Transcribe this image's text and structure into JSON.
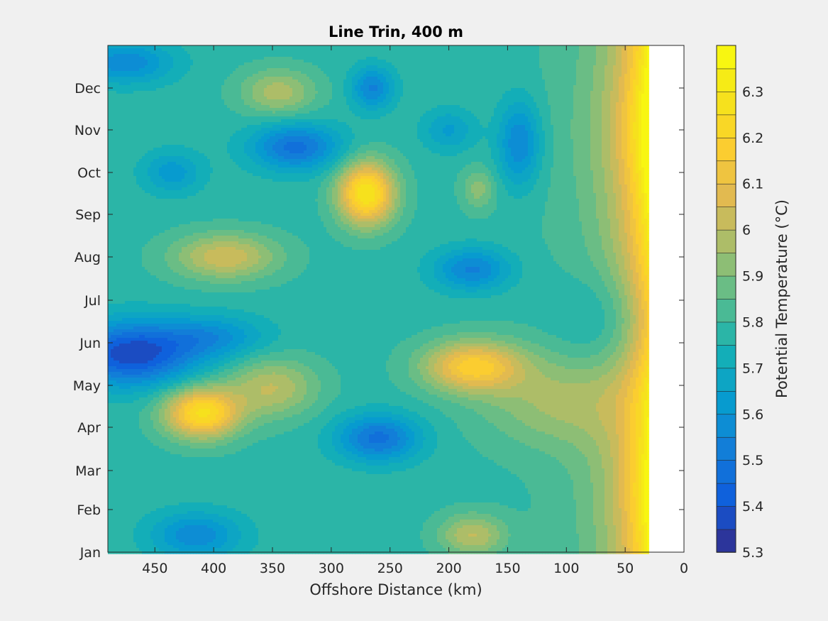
{
  "chart_data": {
    "type": "heatmap",
    "subtype": "filled-contour",
    "title": "Line Trin, 400 m",
    "xlabel": "Offshore Distance (km)",
    "ylabel": "",
    "x_reversed": true,
    "xlim": [
      490,
      0
    ],
    "x_ticks": [
      450,
      400,
      350,
      300,
      250,
      200,
      150,
      100,
      50,
      0
    ],
    "x_tick_labels": [
      "450",
      "400",
      "350",
      "300",
      "250",
      "200",
      "150",
      "100",
      "50",
      "0"
    ],
    "y_categories": [
      "Jan",
      "Feb",
      "Mar",
      "Apr",
      "May",
      "Jun",
      "Jul",
      "Aug",
      "Sep",
      "Oct",
      "Nov",
      "Dec"
    ],
    "data_x_extent_km": [
      490,
      30
    ],
    "no_data_region_km": [
      30,
      0
    ],
    "colorbar": {
      "label": "Potential Temperature (°C)",
      "range": [
        5.3,
        6.4
      ],
      "levels": [
        5.3,
        5.35,
        5.4,
        5.45,
        5.5,
        5.55,
        5.6,
        5.65,
        5.7,
        5.75,
        5.8,
        5.85,
        5.9,
        5.95,
        6.0,
        6.05,
        6.1,
        6.15,
        6.2,
        6.25,
        6.3,
        6.35,
        6.4
      ],
      "tick_values": [
        5.3,
        5.4,
        5.5,
        5.6,
        5.7,
        5.8,
        5.9,
        6.0,
        6.1,
        6.2,
        6.3
      ],
      "tick_labels": [
        "5.3",
        "5.4",
        "5.5",
        "5.6",
        "5.7",
        "5.8",
        "5.9",
        "6",
        "6.1",
        "6.2",
        "6.3"
      ],
      "colormap": "parula"
    },
    "background": 5.78,
    "features": [
      {
        "name": "sep-warm-core",
        "x_km": 270,
        "month": 9.5,
        "amplitude": 0.52,
        "sx": 24,
        "sy": 0.75
      },
      {
        "name": "apr-warm-patch",
        "x_km": 410,
        "month": 4.3,
        "amplitude": 0.48,
        "sx": 32,
        "sy": 0.6
      },
      {
        "name": "apr-warm-tail",
        "x_km": 350,
        "month": 4.9,
        "amplitude": 0.22,
        "sx": 38,
        "sy": 0.7
      },
      {
        "name": "may-warm-patch",
        "x_km": 180,
        "month": 5.4,
        "amplitude": 0.38,
        "sx": 42,
        "sy": 0.6
      },
      {
        "name": "apr-may-warm-band",
        "x_km": 110,
        "month": 4.6,
        "amplitude": 0.16,
        "sx": 65,
        "sy": 1.1
      },
      {
        "name": "aug-warm-patch",
        "x_km": 390,
        "month": 8.0,
        "amplitude": 0.26,
        "sx": 45,
        "sy": 0.55
      },
      {
        "name": "dec-warm-patch",
        "x_km": 345,
        "month": 11.9,
        "amplitude": 0.2,
        "sx": 32,
        "sy": 0.55
      },
      {
        "name": "sep-warm-small",
        "x_km": 175,
        "month": 9.6,
        "amplitude": 0.14,
        "sx": 14,
        "sy": 0.5
      },
      {
        "name": "jan-warm-small",
        "x_km": 180,
        "month": 1.4,
        "amplitude": 0.22,
        "sx": 28,
        "sy": 0.5
      },
      {
        "name": "may-cold-core",
        "x_km": 470,
        "month": 5.7,
        "amplitude": -0.42,
        "sx": 55,
        "sy": 0.75
      },
      {
        "name": "jun-cold-tail",
        "x_km": 400,
        "month": 6.1,
        "amplitude": -0.18,
        "sx": 45,
        "sy": 0.5
      },
      {
        "name": "oct-cold-patch",
        "x_km": 330,
        "month": 10.6,
        "amplitude": -0.3,
        "sx": 38,
        "sy": 0.55
      },
      {
        "name": "dec-cold-patch",
        "x_km": 265,
        "month": 12.0,
        "amplitude": -0.24,
        "sx": 18,
        "sy": 0.5
      },
      {
        "name": "nov-cold-patch",
        "x_km": 140,
        "month": 10.7,
        "amplitude": -0.24,
        "sx": 18,
        "sy": 1.0
      },
      {
        "name": "nov-cold-small",
        "x_km": 200,
        "month": 11.0,
        "amplitude": -0.14,
        "sx": 22,
        "sy": 0.5
      },
      {
        "name": "aug-cold-patch",
        "x_km": 180,
        "month": 7.7,
        "amplitude": -0.24,
        "sx": 32,
        "sy": 0.5
      },
      {
        "name": "mar-cold-patch",
        "x_km": 260,
        "month": 3.7,
        "amplitude": -0.3,
        "sx": 35,
        "sy": 0.55
      },
      {
        "name": "jan-cold-patch",
        "x_km": 415,
        "month": 1.4,
        "amplitude": -0.22,
        "sx": 38,
        "sy": 0.55
      },
      {
        "name": "dec-corner-cold",
        "x_km": 475,
        "month": 12.6,
        "amplitude": -0.22,
        "sx": 40,
        "sy": 0.5
      },
      {
        "name": "oct-west-cold",
        "x_km": 435,
        "month": 10.0,
        "amplitude": -0.16,
        "sx": 25,
        "sy": 0.5
      },
      {
        "name": "jun-coastal-cold",
        "x_km": 70,
        "month": 6.4,
        "amplitude": -0.1,
        "sx": 40,
        "sy": 1.2
      }
    ],
    "coastal_warming": {
      "x_km": 30,
      "amplitude": 0.55,
      "scale_km": 28
    },
    "coastal_seasonal": [
      {
        "month": 11.0,
        "amplitude": 0.18,
        "sy": 1.6
      },
      {
        "month": 2.4,
        "amplitude": 0.1,
        "sy": 1.3
      },
      {
        "month": 6.5,
        "amplitude": -0.12,
        "sy": 1.5
      }
    ]
  }
}
